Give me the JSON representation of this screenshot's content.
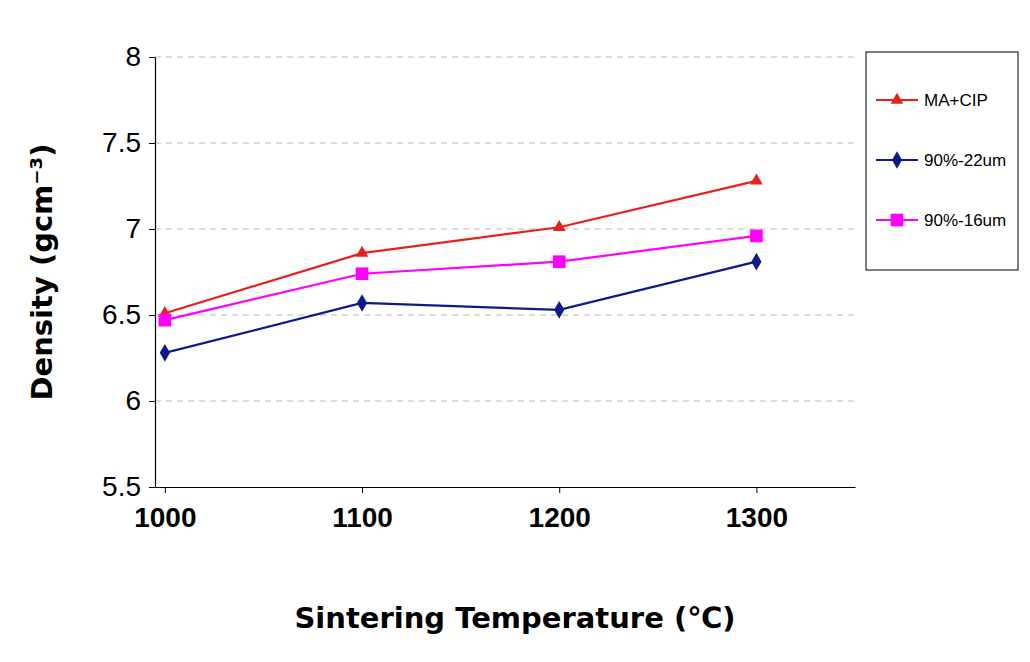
{
  "chart_data": {
    "type": "line",
    "x_label": "Sintering Temperature (℃)",
    "y_label": "Density (gcm⁻³)",
    "x": [
      1000,
      1100,
      1200,
      1300
    ],
    "xlim": [
      995,
      1350
    ],
    "xticks": [
      1000,
      1100,
      1200,
      1300
    ],
    "ylim": [
      5.5,
      8
    ],
    "yticks": [
      5.5,
      6,
      6.5,
      7,
      7.5,
      8
    ],
    "grid": true,
    "legend": "top-right",
    "series": [
      {
        "name": "MA+CIP",
        "color": "#e8201c",
        "marker": "triangle",
        "values": [
          6.51,
          6.86,
          7.01,
          7.28
        ]
      },
      {
        "name": "90%-22um",
        "color": "#0d1a8a",
        "marker": "diamond",
        "values": [
          6.28,
          6.57,
          6.53,
          6.81
        ]
      },
      {
        "name": "90%-16um",
        "color": "#ff00ff",
        "marker": "square",
        "values": [
          6.47,
          6.74,
          6.81,
          6.96
        ]
      }
    ]
  }
}
